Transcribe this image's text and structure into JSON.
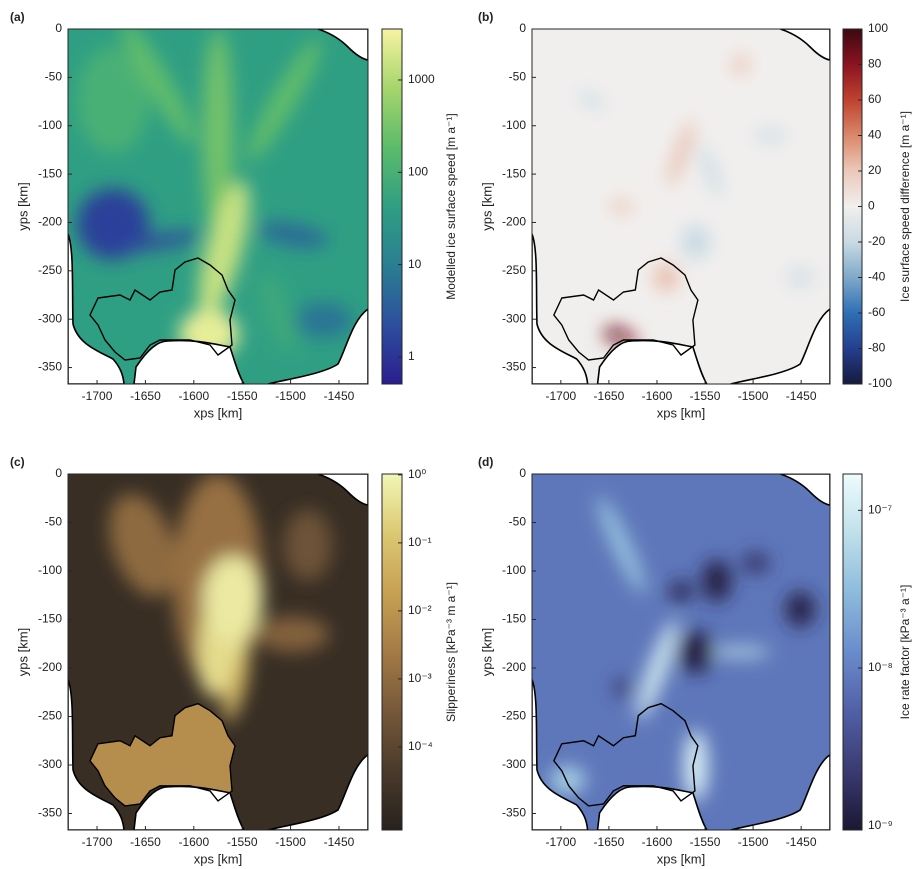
{
  "chart_data": [
    {
      "type": "heatmap",
      "panel_label": "(a)",
      "xlabel": "xps [km]",
      "ylabel": "yps [km]",
      "xlim": [
        -1730,
        -1420
      ],
      "ylim": [
        -367,
        0
      ],
      "xticks": [
        -1700,
        -1650,
        -1600,
        -1550,
        -1500,
        -1450
      ],
      "yticks": [
        0,
        -50,
        -100,
        -150,
        -200,
        -250,
        -300,
        -350
      ],
      "colorbar": {
        "label": "Modelled ice surface speed [m a⁻¹]",
        "scale": "log",
        "clim": [
          0.51,
          3565
        ],
        "ticks": [
          1,
          10,
          100,
          1000
        ],
        "colormap": [
          "#2b1d8f",
          "#2d4f9e",
          "#2a7e92",
          "#2f9f83",
          "#5cbb6a",
          "#a6d56c",
          "#f7f3a2"
        ]
      }
    },
    {
      "type": "heatmap",
      "panel_label": "(b)",
      "xlabel": "xps [km]",
      "ylabel": "yps [km]",
      "xlim": [
        -1730,
        -1420
      ],
      "ylim": [
        -367,
        0
      ],
      "xticks": [
        -1700,
        -1650,
        -1600,
        -1550,
        -1500,
        -1450
      ],
      "yticks": [
        0,
        -50,
        -100,
        -150,
        -200,
        -250,
        -300,
        -350
      ],
      "colorbar": {
        "label": "Ice surface speed difference [m a⁻¹]",
        "scale": "linear",
        "clim": [
          -100,
          100
        ],
        "ticks": [
          -100,
          -80,
          -60,
          -40,
          -20,
          0,
          20,
          40,
          60,
          80,
          100
        ],
        "colormap": [
          "#161a3e",
          "#243f8f",
          "#2f6fb4",
          "#7fa9c9",
          "#c9dae3",
          "#f1efee",
          "#ecc8b9",
          "#d9886b",
          "#bf4230",
          "#8a1421",
          "#3c0911"
        ]
      }
    },
    {
      "type": "heatmap",
      "panel_label": "(c)",
      "xlabel": "xps [km]",
      "ylabel": "yps [km]",
      "xlim": [
        -1730,
        -1420
      ],
      "ylim": [
        -367,
        0
      ],
      "xticks": [
        -1700,
        -1650,
        -1600,
        -1550,
        -1500,
        -1450
      ],
      "yticks": [
        0,
        -50,
        -100,
        -150,
        -200,
        -250,
        -300,
        -350
      ],
      "colorbar": {
        "label": "Slipperiness [kPa⁻³ m a⁻¹]",
        "scale": "log",
        "clim": [
          6e-06,
          1.03
        ],
        "ticks": [
          {
            "value": 1,
            "label": "10⁰"
          },
          {
            "value": 0.1,
            "label": "10⁻¹"
          },
          {
            "value": 0.01,
            "label": "10⁻²"
          },
          {
            "value": 0.001,
            "label": "10⁻³"
          },
          {
            "value": 0.0001,
            "label": "10⁻⁴"
          }
        ],
        "colormap": [
          "#27221e",
          "#4a3a2a",
          "#76583a",
          "#a47a45",
          "#c7a153",
          "#dcc872",
          "#f1f7b6"
        ]
      }
    },
    {
      "type": "heatmap",
      "panel_label": "(d)",
      "xlabel": "xps [km]",
      "ylabel": "yps [km]",
      "xlim": [
        -1730,
        -1420
      ],
      "ylim": [
        -367,
        0
      ],
      "xticks": [
        -1700,
        -1650,
        -1600,
        -1550,
        -1500,
        -1450
      ],
      "yticks": [
        0,
        -50,
        -100,
        -150,
        -200,
        -250,
        -300,
        -350
      ],
      "colorbar": {
        "label": "Ice rate factor [kPa⁻³ a⁻¹]",
        "scale": "log",
        "clim": [
          9.4e-10,
          1.7e-07
        ],
        "ticks": [
          {
            "value": 1e-07,
            "label": "10⁻⁷"
          },
          {
            "value": 1e-08,
            "label": "10⁻⁸"
          },
          {
            "value": 1e-09,
            "label": "10⁻⁹"
          }
        ],
        "colormap": [
          "#1b1733",
          "#3b3a72",
          "#5160a6",
          "#6a8ccc",
          "#8dbbdc",
          "#bfe0ea",
          "#eefcfd"
        ]
      }
    }
  ]
}
